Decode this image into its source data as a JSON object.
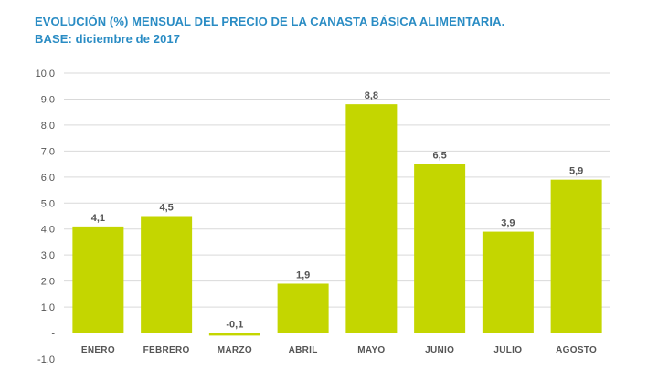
{
  "header": {
    "title": "EVOLUCIÓN (%) MENSUAL DEL PRECIO DE LA CANASTA BÁSICA ALIMENTARIA.",
    "subtitle": "BASE: diciembre de 2017"
  },
  "chart_data": {
    "type": "bar",
    "title": "EVOLUCIÓN (%) MENSUAL DEL PRECIO DE LA CANASTA BÁSICA ALIMENTARIA.",
    "subtitle": "BASE: diciembre de 2017",
    "categories": [
      "ENERO",
      "FEBRERO",
      "MARZO",
      "ABRIL",
      "MAYO",
      "JUNIO",
      "JULIO",
      "AGOSTO"
    ],
    "values": [
      4.1,
      4.5,
      -0.1,
      1.9,
      8.8,
      6.5,
      3.9,
      5.9
    ],
    "value_labels": [
      "4,1",
      "4,5",
      "-0,1",
      "1,9",
      "8,8",
      "6,5",
      "3,9",
      "5,9"
    ],
    "y_ticks": [
      -1,
      0,
      1,
      2,
      3,
      4,
      5,
      6,
      7,
      8,
      9,
      10
    ],
    "y_tick_labels": [
      "-1,0",
      "-",
      "1,0",
      "2,0",
      "3,0",
      "4,0",
      "5,0",
      "6,0",
      "7,0",
      "8,0",
      "9,0",
      "10,0"
    ],
    "ylim": [
      -1,
      10
    ],
    "grid": true,
    "legend": "none",
    "xlabel": "",
    "ylabel": "",
    "colors": {
      "bar": "#c4d600",
      "grid": "#d9d9d9",
      "text": "#555555",
      "title": "#2a8cc4"
    }
  }
}
